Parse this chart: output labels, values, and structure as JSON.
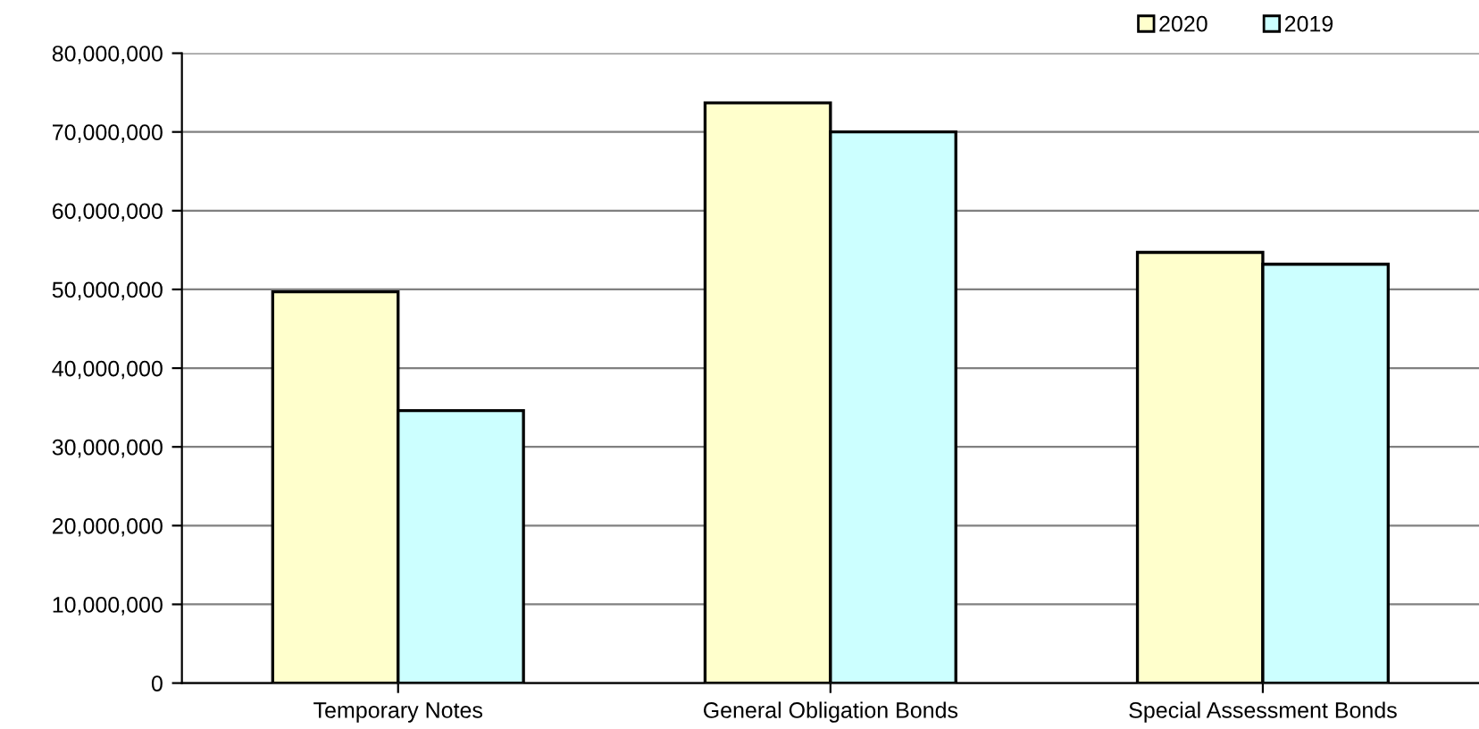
{
  "chart_data": {
    "type": "bar",
    "categories": [
      "Temporary Notes",
      "General Obligation Bonds",
      "Special Assessment Bonds"
    ],
    "series": [
      {
        "name": "2020",
        "color": "#ffffcc",
        "values": [
          49700000,
          73700000,
          54700000
        ]
      },
      {
        "name": "2019",
        "color": "#ccffff",
        "values": [
          34600000,
          70000000,
          53200000
        ]
      }
    ],
    "ylim": [
      0,
      80000000
    ],
    "yticks": [
      {
        "value": 0,
        "label": "0"
      },
      {
        "value": 10000000,
        "label": "10,000,000"
      },
      {
        "value": 20000000,
        "label": "20,000,000"
      },
      {
        "value": 30000000,
        "label": "30,000,000"
      },
      {
        "value": 40000000,
        "label": "40,000,000"
      },
      {
        "value": 50000000,
        "label": "50,000,000"
      },
      {
        "value": 60000000,
        "label": "60,000,000"
      },
      {
        "value": 70000000,
        "label": "70,000,000"
      },
      {
        "value": 80000000,
        "label": "80,000,000"
      }
    ],
    "grid": "y",
    "legend": "top right"
  }
}
